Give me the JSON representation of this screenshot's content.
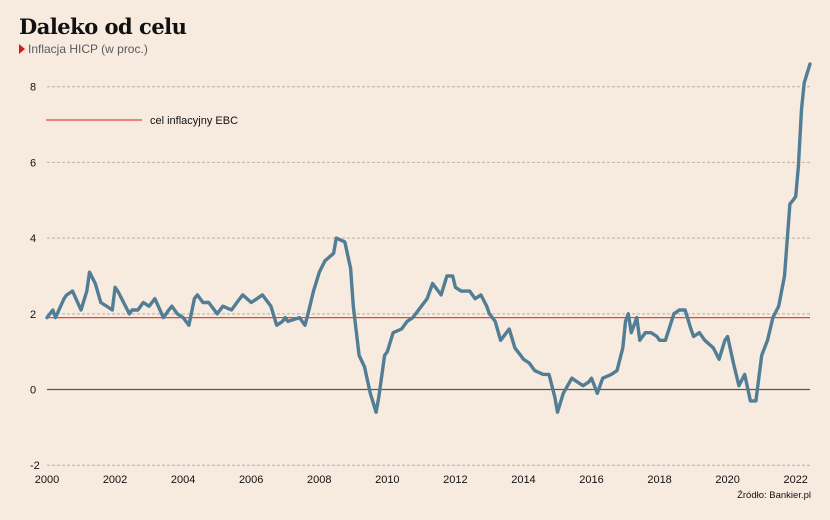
{
  "header": {
    "title": "Daleko od celu",
    "subtitle": "Inflacja HICP (w proc.)"
  },
  "footer": {
    "source": "Źródło: Bankier.pl"
  },
  "colors": {
    "background": "#f7ebdf",
    "series": "#517d95",
    "target_line": "#e0473f",
    "zero_line": "#555555",
    "grid": "#b8b0a8",
    "marker": "#d7191c"
  },
  "chart_data": {
    "type": "line",
    "title": "Daleko od celu",
    "subtitle": "Inflacja HICP (w proc.)",
    "xlabel": "",
    "ylabel": "",
    "xlim": [
      2000,
      2022.42
    ],
    "ylim": [
      -2,
      8.6
    ],
    "grid": true,
    "y_ticks": [
      -2,
      0,
      2,
      4,
      6,
      8
    ],
    "x_ticks": [
      2000,
      2002,
      2004,
      2006,
      2008,
      2010,
      2012,
      2014,
      2016,
      2018,
      2020,
      2022
    ],
    "reference_line": {
      "label": "cel inflacyjny EBC",
      "value": 1.9
    },
    "legend_position": "top-left",
    "series": [
      {
        "name": "",
        "x": [
          2000.0,
          2000.17,
          2000.25,
          2000.5,
          2000.58,
          2000.75,
          2001.0,
          2001.17,
          2001.25,
          2001.42,
          2001.58,
          2001.75,
          2001.92,
          2002.0,
          2002.08,
          2002.42,
          2002.5,
          2002.67,
          2002.83,
          2003.0,
          2003.17,
          2003.42,
          2003.58,
          2003.67,
          2003.83,
          2004.0,
          2004.17,
          2004.33,
          2004.42,
          2004.58,
          2004.75,
          2005.0,
          2005.17,
          2005.42,
          2005.58,
          2005.75,
          2006.0,
          2006.17,
          2006.33,
          2006.58,
          2006.75,
          2006.92,
          2007.0,
          2007.08,
          2007.42,
          2007.58,
          2007.67,
          2007.83,
          2008.0,
          2008.17,
          2008.42,
          2008.5,
          2008.75,
          2008.92,
          2009.0,
          2009.17,
          2009.33,
          2009.5,
          2009.67,
          2009.75,
          2009.92,
          2010.0,
          2010.17,
          2010.42,
          2010.58,
          2010.75,
          2011.0,
          2011.17,
          2011.33,
          2011.58,
          2011.75,
          2011.92,
          2012.0,
          2012.17,
          2012.42,
          2012.58,
          2012.75,
          2012.92,
          2013.0,
          2013.17,
          2013.33,
          2013.58,
          2013.75,
          2013.92,
          2014.0,
          2014.17,
          2014.33,
          2014.58,
          2014.75,
          2014.92,
          2015.0,
          2015.17,
          2015.42,
          2015.58,
          2015.75,
          2015.92,
          2016.0,
          2016.17,
          2016.33,
          2016.58,
          2016.75,
          2016.92,
          2017.0,
          2017.08,
          2017.17,
          2017.33,
          2017.42,
          2017.58,
          2017.75,
          2017.92,
          2018.0,
          2018.17,
          2018.42,
          2018.58,
          2018.75,
          2018.92,
          2019.0,
          2019.17,
          2019.33,
          2019.58,
          2019.75,
          2019.92,
          2020.0,
          2020.17,
          2020.33,
          2020.5,
          2020.67,
          2020.83,
          2021.0,
          2021.17,
          2021.33,
          2021.5,
          2021.67,
          2021.83,
          2021.92,
          2022.0,
          2022.08,
          2022.17,
          2022.25,
          2022.42
        ],
        "values": [
          1.9,
          2.1,
          1.9,
          2.4,
          2.5,
          2.6,
          2.1,
          2.6,
          3.1,
          2.8,
          2.3,
          2.2,
          2.1,
          2.7,
          2.6,
          2.0,
          2.1,
          2.1,
          2.3,
          2.2,
          2.4,
          1.9,
          2.1,
          2.2,
          2.0,
          1.9,
          1.7,
          2.4,
          2.5,
          2.3,
          2.3,
          2.0,
          2.2,
          2.1,
          2.3,
          2.5,
          2.3,
          2.4,
          2.5,
          2.2,
          1.7,
          1.8,
          1.9,
          1.8,
          1.9,
          1.7,
          2.0,
          2.6,
          3.1,
          3.4,
          3.6,
          4.0,
          3.9,
          3.2,
          2.2,
          0.9,
          0.6,
          -0.1,
          -0.6,
          -0.2,
          0.9,
          1.0,
          1.5,
          1.6,
          1.8,
          1.9,
          2.2,
          2.4,
          2.8,
          2.5,
          3.0,
          3.0,
          2.7,
          2.6,
          2.6,
          2.4,
          2.5,
          2.2,
          2.0,
          1.8,
          1.3,
          1.6,
          1.1,
          0.9,
          0.8,
          0.7,
          0.5,
          0.4,
          0.4,
          -0.2,
          -0.6,
          -0.1,
          0.3,
          0.2,
          0.1,
          0.2,
          0.3,
          -0.1,
          0.3,
          0.4,
          0.5,
          1.1,
          1.8,
          2.0,
          1.5,
          1.9,
          1.3,
          1.5,
          1.5,
          1.4,
          1.3,
          1.3,
          2.0,
          2.1,
          2.1,
          1.6,
          1.4,
          1.5,
          1.3,
          1.1,
          0.8,
          1.3,
          1.4,
          0.7,
          0.1,
          0.4,
          -0.3,
          -0.3,
          0.9,
          1.3,
          1.9,
          2.2,
          3.0,
          4.9,
          5.0,
          5.1,
          5.9,
          7.4,
          8.1,
          8.6
        ]
      }
    ]
  }
}
